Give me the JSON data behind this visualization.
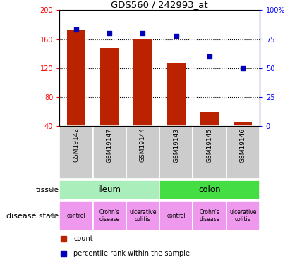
{
  "title": "GDS560 / 242993_at",
  "samples": [
    "GSM19142",
    "GSM19147",
    "GSM19144",
    "GSM19143",
    "GSM19145",
    "GSM19146"
  ],
  "count_values": [
    172,
    148,
    160,
    128,
    60,
    45
  ],
  "percentile_values": [
    83,
    80,
    80,
    78,
    60,
    50
  ],
  "ymin": 40,
  "ymax": 200,
  "yticks": [
    40,
    80,
    120,
    160,
    200
  ],
  "y2min": 0,
  "y2max": 100,
  "y2ticks": [
    0,
    25,
    50,
    75,
    100
  ],
  "bar_color": "#bb2200",
  "dot_color": "#0000bb",
  "tissue_row": [
    {
      "label": "ileum",
      "span": [
        0,
        3
      ],
      "color": "#aaeebb"
    },
    {
      "label": "colon",
      "span": [
        3,
        6
      ],
      "color": "#44dd44"
    }
  ],
  "disease_row": [
    {
      "label": "control",
      "color": "#ee99ee"
    },
    {
      "label": "Crohn's\ndisease",
      "color": "#ee99ee"
    },
    {
      "label": "ulcerative\ncolitis",
      "color": "#ee99ee"
    },
    {
      "label": "control",
      "color": "#ee99ee"
    },
    {
      "label": "Crohn's\ndisease",
      "color": "#ee99ee"
    },
    {
      "label": "ulcerative\ncolitis",
      "color": "#ee99ee"
    }
  ],
  "sample_label_bg": "#cccccc",
  "left_label_tissue": "tissue",
  "left_label_disease": "disease state",
  "legend_count_color": "#bb2200",
  "legend_pct_color": "#0000bb",
  "bar_width": 0.55
}
